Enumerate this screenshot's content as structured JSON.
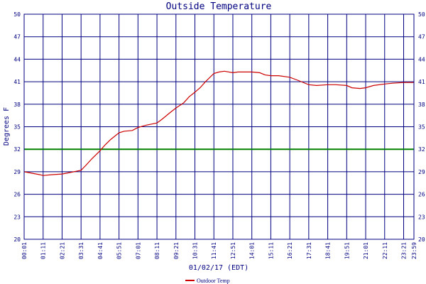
{
  "chart_data": {
    "type": "line",
    "title": "Outside Temperature",
    "xlabel": "01/02/17 (EDT)",
    "ylabel": "Degrees F",
    "ylim": [
      20,
      50
    ],
    "yticks": [
      "20",
      "23",
      "26",
      "29",
      "32",
      "35",
      "38",
      "41",
      "44",
      "47",
      "50"
    ],
    "xticks": [
      "00:01",
      "01:11",
      "02:21",
      "03:31",
      "04:41",
      "05:51",
      "07:01",
      "08:11",
      "09:21",
      "10:31",
      "11:41",
      "12:51",
      "14:01",
      "15:11",
      "16:21",
      "17:31",
      "18:41",
      "19:51",
      "21:01",
      "22:11",
      "23:21",
      "23:59"
    ],
    "grid": true,
    "legend_position": "bottom-left",
    "reference_line": {
      "value": 32,
      "color": "#008000"
    },
    "series": [
      {
        "name": "Outdoor Temp",
        "color": "#cc0000",
        "x": [
          "00:01",
          "00:30",
          "01:00",
          "01:11",
          "01:40",
          "02:21",
          "02:50",
          "03:31",
          "03:50",
          "04:10",
          "04:41",
          "05:00",
          "05:20",
          "05:51",
          "06:10",
          "06:40",
          "07:01",
          "07:30",
          "08:11",
          "08:30",
          "09:00",
          "09:21",
          "09:50",
          "10:10",
          "10:31",
          "10:50",
          "11:10",
          "11:41",
          "12:00",
          "12:20",
          "12:51",
          "13:10",
          "13:40",
          "14:01",
          "14:30",
          "14:50",
          "15:11",
          "15:40",
          "16:21",
          "16:50",
          "17:31",
          "18:00",
          "18:41",
          "19:10",
          "19:51",
          "20:10",
          "20:40",
          "21:01",
          "21:30",
          "22:11",
          "22:40",
          "23:21",
          "23:59"
        ],
        "y": [
          29.0,
          28.8,
          28.6,
          28.5,
          28.6,
          28.7,
          28.9,
          29.2,
          29.9,
          30.7,
          31.8,
          32.6,
          33.3,
          34.2,
          34.4,
          34.5,
          34.9,
          35.2,
          35.5,
          36.0,
          36.9,
          37.5,
          38.2,
          39.0,
          39.6,
          40.2,
          41.0,
          42.1,
          42.3,
          42.4,
          42.2,
          42.3,
          42.3,
          42.3,
          42.2,
          41.9,
          41.8,
          41.8,
          41.6,
          41.2,
          40.6,
          40.5,
          40.6,
          40.6,
          40.5,
          40.2,
          40.1,
          40.2,
          40.5,
          40.7,
          40.8,
          40.9,
          40.9
        ]
      }
    ]
  }
}
